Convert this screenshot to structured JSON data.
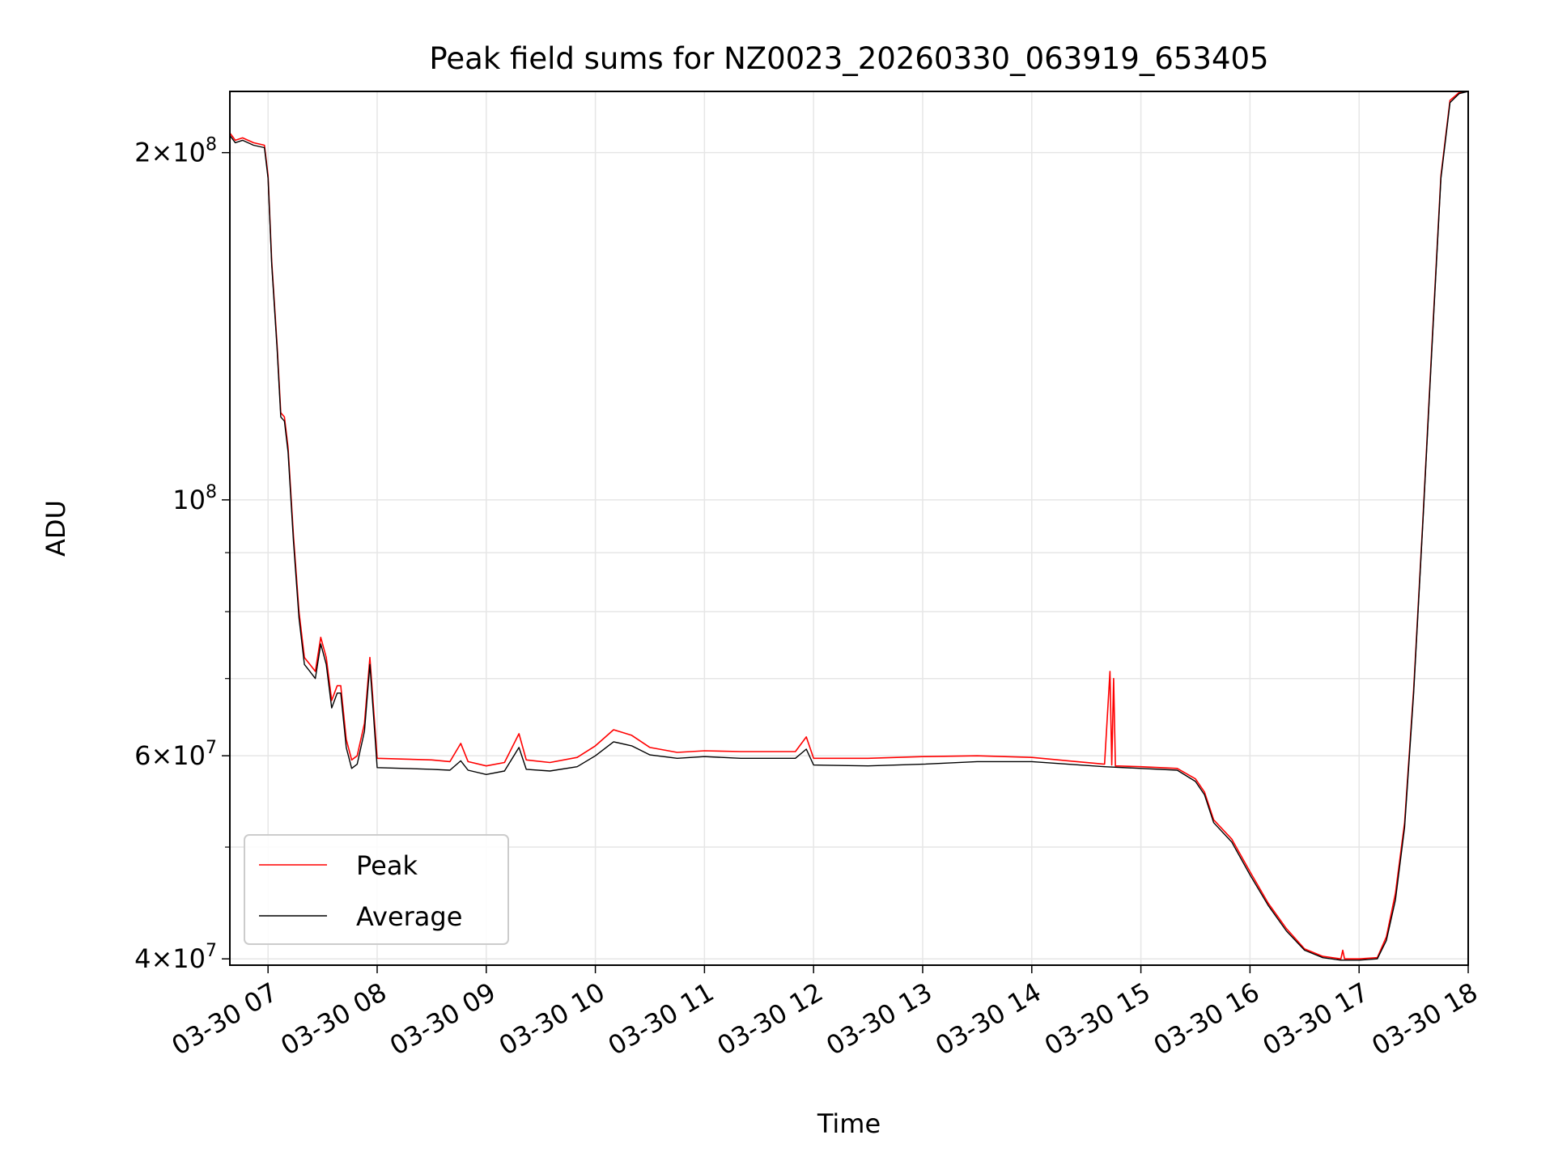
{
  "chart_data": {
    "type": "line",
    "title": "Peak field sums for NZ0023_20260330_063919_653405",
    "xlabel": "Time",
    "ylabel": "ADU",
    "yscale": "log",
    "grid": true,
    "legend_position": "lower-left",
    "xlim": [
      "03-30 06:39",
      "03-30 18:00"
    ],
    "ylim": [
      39500000,
      226000000
    ],
    "x_ticks": [
      {
        "t": "03-30 07:00",
        "label": "03-30 07"
      },
      {
        "t": "03-30 08:00",
        "label": "03-30 08"
      },
      {
        "t": "03-30 09:00",
        "label": "03-30 09"
      },
      {
        "t": "03-30 10:00",
        "label": "03-30 10"
      },
      {
        "t": "03-30 11:00",
        "label": "03-30 11"
      },
      {
        "t": "03-30 12:00",
        "label": "03-30 12"
      },
      {
        "t": "03-30 13:00",
        "label": "03-30 13"
      },
      {
        "t": "03-30 14:00",
        "label": "03-30 14"
      },
      {
        "t": "03-30 15:00",
        "label": "03-30 15"
      },
      {
        "t": "03-30 16:00",
        "label": "03-30 16"
      },
      {
        "t": "03-30 17:00",
        "label": "03-30 17"
      },
      {
        "t": "03-30 18:00",
        "label": "03-30 18"
      }
    ],
    "y_ticks": [
      {
        "v": 40000000,
        "m": "4",
        "e": "7"
      },
      {
        "v": 60000000,
        "m": "6",
        "e": "7"
      },
      {
        "v": 100000000,
        "m": "",
        "e": "8"
      },
      {
        "v": 200000000,
        "m": "2",
        "e": "8"
      }
    ],
    "y_minor_ticks": [
      50000000,
      70000000,
      80000000,
      90000000
    ],
    "series": [
      {
        "name": "Average",
        "color": "#000000",
        "points": [
          [
            "03-30 06:39",
            207000000
          ],
          [
            "03-30 06:42",
            204000000
          ],
          [
            "03-30 06:46",
            205000000
          ],
          [
            "03-30 06:52",
            203000000
          ],
          [
            "03-30 06:58",
            202000000
          ],
          [
            "03-30 07:00",
            190000000
          ],
          [
            "03-30 07:02",
            160000000
          ],
          [
            "03-30 07:05",
            135000000
          ],
          [
            "03-30 07:07",
            118000000
          ],
          [
            "03-30 07:09",
            117000000
          ],
          [
            "03-30 07:11",
            110000000
          ],
          [
            "03-30 07:14",
            92000000
          ],
          [
            "03-30 07:17",
            79000000
          ],
          [
            "03-30 07:20",
            72000000
          ],
          [
            "03-30 07:23",
            71000000
          ],
          [
            "03-30 07:26",
            70000000
          ],
          [
            "03-30 07:29",
            75000000
          ],
          [
            "03-30 07:32",
            72000000
          ],
          [
            "03-30 07:35",
            66000000
          ],
          [
            "03-30 07:38",
            68000000
          ],
          [
            "03-30 07:40",
            68000000
          ],
          [
            "03-30 07:43",
            61000000
          ],
          [
            "03-30 07:46",
            58500000
          ],
          [
            "03-30 07:49",
            59000000
          ],
          [
            "03-30 07:53",
            63000000
          ],
          [
            "03-30 07:56",
            72000000
          ],
          [
            "03-30 07:58",
            65000000
          ],
          [
            "03-30 08:00",
            58600000
          ],
          [
            "03-30 08:15",
            58500000
          ],
          [
            "03-30 08:30",
            58400000
          ],
          [
            "03-30 08:40",
            58300000
          ],
          [
            "03-30 08:46",
            59400000
          ],
          [
            "03-30 08:50",
            58300000
          ],
          [
            "03-30 09:00",
            57800000
          ],
          [
            "03-30 09:10",
            58200000
          ],
          [
            "03-30 09:18",
            61000000
          ],
          [
            "03-30 09:22",
            58400000
          ],
          [
            "03-30 09:35",
            58200000
          ],
          [
            "03-30 09:50",
            58700000
          ],
          [
            "03-30 10:00",
            60000000
          ],
          [
            "03-30 10:10",
            61700000
          ],
          [
            "03-30 10:20",
            61200000
          ],
          [
            "03-30 10:30",
            60100000
          ],
          [
            "03-30 10:45",
            59700000
          ],
          [
            "03-30 11:00",
            59900000
          ],
          [
            "03-30 11:20",
            59700000
          ],
          [
            "03-30 11:50",
            59700000
          ],
          [
            "03-30 11:56",
            60800000
          ],
          [
            "03-30 12:00",
            58900000
          ],
          [
            "03-30 12:30",
            58800000
          ],
          [
            "03-30 13:00",
            59000000
          ],
          [
            "03-30 13:30",
            59300000
          ],
          [
            "03-30 14:00",
            59300000
          ],
          [
            "03-30 14:20",
            59000000
          ],
          [
            "03-30 14:40",
            58700000
          ],
          [
            "03-30 15:00",
            58500000
          ],
          [
            "03-30 15:20",
            58300000
          ],
          [
            "03-30 15:30",
            57000000
          ],
          [
            "03-30 15:35",
            55500000
          ],
          [
            "03-30 15:40",
            52500000
          ],
          [
            "03-30 15:50",
            50500000
          ],
          [
            "03-30 16:00",
            47300000
          ],
          [
            "03-30 16:10",
            44500000
          ],
          [
            "03-30 16:20",
            42300000
          ],
          [
            "03-30 16:30",
            40700000
          ],
          [
            "03-30 16:40",
            40100000
          ],
          [
            "03-30 16:50",
            39900000
          ],
          [
            "03-30 17:00",
            39900000
          ],
          [
            "03-30 17:10",
            40000000
          ],
          [
            "03-30 17:15",
            41500000
          ],
          [
            "03-30 17:20",
            45000000
          ],
          [
            "03-30 17:25",
            52000000
          ],
          [
            "03-30 17:30",
            68000000
          ],
          [
            "03-30 17:35",
            95000000
          ],
          [
            "03-30 17:40",
            135000000
          ],
          [
            "03-30 17:45",
            190000000
          ],
          [
            "03-30 17:50",
            221000000
          ],
          [
            "03-30 17:55",
            225000000
          ],
          [
            "03-30 18:00",
            226000000
          ]
        ]
      },
      {
        "name": "Peak",
        "color": "#ff0000",
        "points": [
          [
            "03-30 06:39",
            208000000
          ],
          [
            "03-30 06:42",
            205000000
          ],
          [
            "03-30 06:46",
            206000000
          ],
          [
            "03-30 06:52",
            204000000
          ],
          [
            "03-30 06:58",
            203000000
          ],
          [
            "03-30 07:00",
            191000000
          ],
          [
            "03-30 07:02",
            161000000
          ],
          [
            "03-30 07:05",
            136000000
          ],
          [
            "03-30 07:07",
            119000000
          ],
          [
            "03-30 07:09",
            118000000
          ],
          [
            "03-30 07:11",
            111000000
          ],
          [
            "03-30 07:14",
            93000000
          ],
          [
            "03-30 07:17",
            80000000
          ],
          [
            "03-30 07:20",
            73000000
          ],
          [
            "03-30 07:23",
            72000000
          ],
          [
            "03-30 07:26",
            71000000
          ],
          [
            "03-30 07:29",
            76000000
          ],
          [
            "03-30 07:32",
            73000000
          ],
          [
            "03-30 07:35",
            67000000
          ],
          [
            "03-30 07:38",
            69000000
          ],
          [
            "03-30 07:40",
            69000000
          ],
          [
            "03-30 07:43",
            62000000
          ],
          [
            "03-30 07:46",
            59500000
          ],
          [
            "03-30 07:49",
            60000000
          ],
          [
            "03-30 07:53",
            64000000
          ],
          [
            "03-30 07:56",
            73000000
          ],
          [
            "03-30 07:58",
            66000000
          ],
          [
            "03-30 08:00",
            59700000
          ],
          [
            "03-30 08:15",
            59600000
          ],
          [
            "03-30 08:30",
            59500000
          ],
          [
            "03-30 08:40",
            59300000
          ],
          [
            "03-30 08:46",
            61500000
          ],
          [
            "03-30 08:50",
            59300000
          ],
          [
            "03-30 09:00",
            58800000
          ],
          [
            "03-30 09:10",
            59200000
          ],
          [
            "03-30 09:18",
            62700000
          ],
          [
            "03-30 09:22",
            59500000
          ],
          [
            "03-30 09:35",
            59200000
          ],
          [
            "03-30 09:50",
            59800000
          ],
          [
            "03-30 10:00",
            61200000
          ],
          [
            "03-30 10:10",
            63200000
          ],
          [
            "03-30 10:20",
            62500000
          ],
          [
            "03-30 10:30",
            61000000
          ],
          [
            "03-30 10:45",
            60400000
          ],
          [
            "03-30 11:00",
            60600000
          ],
          [
            "03-30 11:20",
            60500000
          ],
          [
            "03-30 11:50",
            60500000
          ],
          [
            "03-30 11:56",
            62300000
          ],
          [
            "03-30 12:00",
            59700000
          ],
          [
            "03-30 12:30",
            59700000
          ],
          [
            "03-30 13:00",
            59900000
          ],
          [
            "03-30 13:30",
            60000000
          ],
          [
            "03-30 14:00",
            59800000
          ],
          [
            "03-30 14:20",
            59400000
          ],
          [
            "03-30 14:40",
            59000000
          ],
          [
            "03-30 14:43",
            71000000
          ],
          [
            "03-30 14:44",
            58900000
          ],
          [
            "03-30 14:45",
            70000000
          ],
          [
            "03-30 14:46",
            58800000
          ],
          [
            "03-30 15:00",
            58700000
          ],
          [
            "03-30 15:20",
            58500000
          ],
          [
            "03-30 15:30",
            57300000
          ],
          [
            "03-30 15:35",
            55800000
          ],
          [
            "03-30 15:40",
            52800000
          ],
          [
            "03-30 15:50",
            50800000
          ],
          [
            "03-30 16:00",
            47600000
          ],
          [
            "03-30 16:10",
            44700000
          ],
          [
            "03-30 16:20",
            42500000
          ],
          [
            "03-30 16:30",
            40800000
          ],
          [
            "03-30 16:40",
            40200000
          ],
          [
            "03-30 16:50",
            40000000
          ],
          [
            "03-30 16:51",
            40700000
          ],
          [
            "03-30 16:52",
            40000000
          ],
          [
            "03-30 17:00",
            40000000
          ],
          [
            "03-30 17:10",
            40100000
          ],
          [
            "03-30 17:15",
            41800000
          ],
          [
            "03-30 17:20",
            45600000
          ],
          [
            "03-30 17:25",
            52500000
          ],
          [
            "03-30 17:30",
            68500000
          ],
          [
            "03-30 17:35",
            95500000
          ],
          [
            "03-30 17:40",
            136000000
          ],
          [
            "03-30 17:45",
            191000000
          ],
          [
            "03-30 17:50",
            222000000
          ],
          [
            "03-30 17:55",
            225500000
          ],
          [
            "03-30 18:00",
            226000000
          ]
        ]
      }
    ],
    "legend_entries": [
      {
        "label": "Peak",
        "color": "#ff0000"
      },
      {
        "label": "Average",
        "color": "#000000"
      }
    ]
  }
}
